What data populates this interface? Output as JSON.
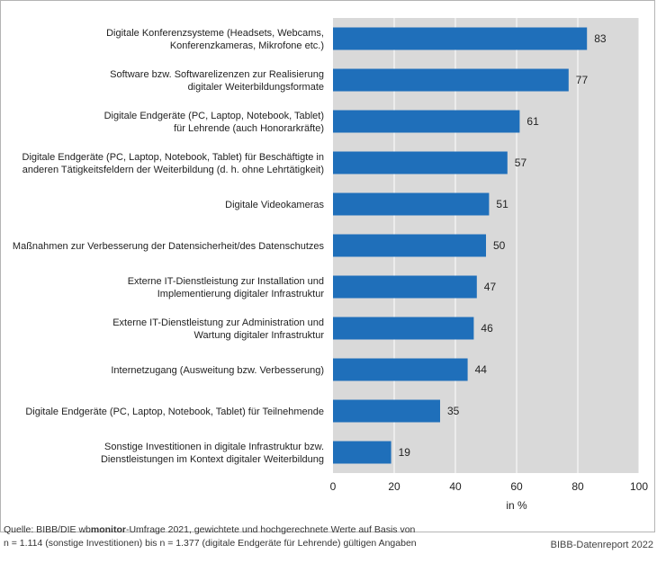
{
  "chart_data": {
    "type": "bar",
    "orientation": "horizontal",
    "categories": [
      [
        "Digitale Konferenzsysteme (Headsets, Webcams,",
        "Konferenzkameras, Mikrofone etc.)"
      ],
      [
        "Software bzw. Softwarelizenzen zur Realisierung",
        "digitaler Weiterbildungsformate"
      ],
      [
        "Digitale Endgeräte (PC, Laptop, Notebook, Tablet)",
        "für Lehrende (auch Honorarkräfte)"
      ],
      [
        "Digitale Endgeräte (PC, Laptop, Notebook, Tablet) für Beschäftigte in",
        "anderen Tätigkeitsfeldern der Weiterbildung (d. h. ohne Lehrtätigkeit)"
      ],
      [
        "Digitale Videokameras"
      ],
      [
        "Maßnahmen zur Verbesserung der Datensicherheit/des Datenschutzes"
      ],
      [
        "Externe IT-Dienstleistung zur Installation und",
        "Implementierung digitaler Infrastruktur"
      ],
      [
        "Externe IT-Dienstleistung zur Administration und",
        "Wartung digitaler Infrastruktur"
      ],
      [
        "Internetzugang (Ausweitung bzw. Verbesserung)"
      ],
      [
        "Digitale Endgeräte (PC, Laptop, Notebook, Tablet) für Teilnehmende"
      ],
      [
        "Sonstige Investitionen in digitale Infrastruktur bzw.",
        "Dienstleistungen im Kontext digitaler Weiterbildung"
      ]
    ],
    "values": [
      83,
      77,
      61,
      57,
      51,
      50,
      47,
      46,
      44,
      35,
      19
    ],
    "xlim": [
      0,
      100
    ],
    "xticks": [
      0,
      20,
      40,
      60,
      80,
      100
    ],
    "xlabel": "in %",
    "bar_color": "#1f6fba",
    "plot_background": "#d9d9d9",
    "grid": "vertical"
  },
  "footer": {
    "source_prefix": "Quelle: BIBB/DIE wb",
    "source_bold": "monitor",
    "source_rest": "-Umfrage 2021, gewichtete und hochgerechnete Werte auf Basis von",
    "source_line2": "n = 1.114 (sonstige Investitionen) bis n = 1.377 (digitale Endgeräte für Lehrende) gültigen Angaben",
    "brand": "BIBB-Datenreport 2022"
  }
}
